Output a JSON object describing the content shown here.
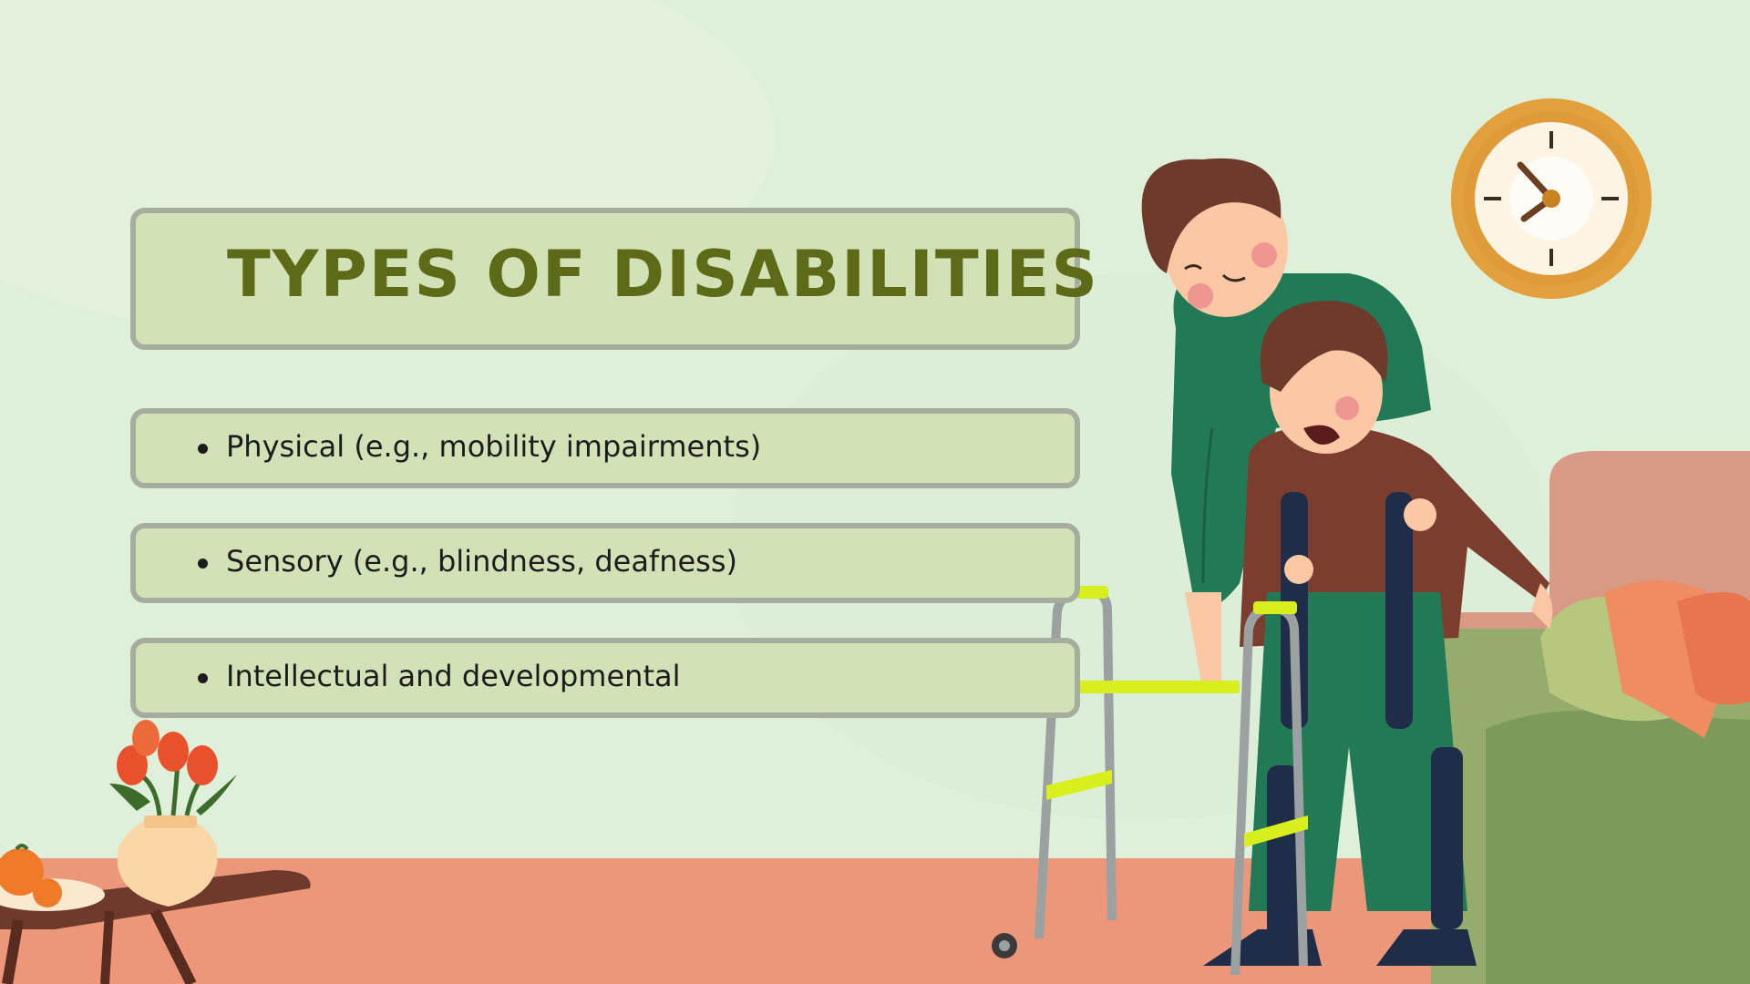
{
  "slide": {
    "title": "Types of Disabilities",
    "bullets": [
      "Physical (e.g., mobility impairments)",
      "Sensory (e.g., blindness, deafness)",
      "Intellectual and developmental"
    ]
  },
  "colors": {
    "background": "#dff0da",
    "floor": "#ec967a",
    "panel_fill": "#d2e2b6",
    "panel_border": "#a6ad9e",
    "title_text": "#5d6a18",
    "body_text": "#1c1c1c",
    "clock_rim": "#e2a13d",
    "walker_accent": "#d8ee1d",
    "caregiver_shirt": "#217a55",
    "child_shirt": "#7a3d2e",
    "sofa": "#d89a84"
  },
  "illustration": {
    "elements": [
      "wall-clock",
      "caregiver",
      "child-with-leg-braces",
      "walker",
      "sofa",
      "cushions",
      "side-table",
      "fruit-plate",
      "flower-vase"
    ]
  }
}
